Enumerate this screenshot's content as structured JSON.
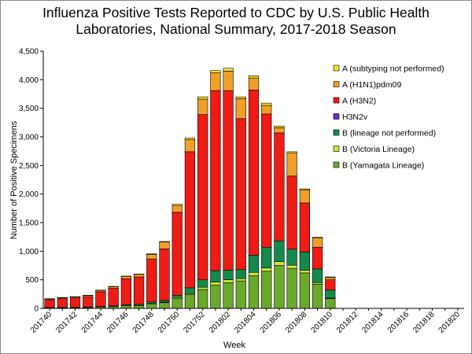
{
  "chart_data": {
    "type": "bar",
    "stacked": true,
    "title_line1": "Influenza Positive Tests Reported to CDC by U.S. Public Health",
    "title_line2": "Laboratories, National Summary, 2017-2018 Season",
    "xlabel": "Week",
    "ylabel": "Number of Positive Specimens",
    "ylim": [
      0,
      4500
    ],
    "yticks": [
      "0",
      "500",
      "1,000",
      "1,500",
      "2,000",
      "2,500",
      "3,000",
      "3,500",
      "4,000",
      "4,500"
    ],
    "ytick_values": [
      0,
      500,
      1000,
      1500,
      2000,
      2500,
      3000,
      3500,
      4000,
      4500
    ],
    "categories": [
      "201740",
      "201741",
      "201742",
      "201743",
      "201744",
      "201745",
      "201746",
      "201747",
      "201748",
      "201749",
      "201750",
      "201751",
      "201752",
      "201801",
      "201802",
      "201803",
      "201804",
      "201805",
      "201806",
      "201807",
      "201808",
      "201809",
      "201810",
      "201811",
      "201812",
      "201813",
      "201814",
      "201815",
      "201816",
      "201817",
      "201818",
      "201819",
      "201820"
    ],
    "xtick_labels": [
      "201740",
      "201742",
      "201744",
      "201746",
      "201748",
      "201750",
      "201752",
      "201802",
      "201804",
      "201806",
      "201808",
      "201810",
      "201812",
      "201814",
      "201816",
      "201818",
      "201820"
    ],
    "series": [
      {
        "name": "B (Yamagata Lineage)",
        "color": "#6aaa2a",
        "values": [
          10,
          10,
          12,
          15,
          25,
          30,
          45,
          50,
          80,
          100,
          170,
          240,
          330,
          410,
          450,
          480,
          570,
          650,
          750,
          700,
          620,
          420,
          170,
          0,
          0,
          0,
          0,
          0,
          0,
          0,
          0,
          0,
          0
        ]
      },
      {
        "name": "B (Victoria Lineage)",
        "color": "#c8e63c",
        "values": [
          0,
          0,
          0,
          0,
          0,
          0,
          0,
          0,
          5,
          10,
          20,
          20,
          40,
          50,
          50,
          40,
          60,
          60,
          70,
          55,
          45,
          30,
          10,
          0,
          0,
          0,
          0,
          0,
          0,
          0,
          0,
          0,
          0
        ]
      },
      {
        "name": "B (lineage not performed)",
        "color": "#138a4c",
        "values": [
          5,
          5,
          5,
          10,
          10,
          15,
          20,
          20,
          30,
          30,
          40,
          100,
          130,
          200,
          170,
          160,
          300,
          360,
          360,
          280,
          320,
          240,
          140,
          0,
          0,
          0,
          0,
          0,
          0,
          0,
          0,
          0,
          0
        ]
      },
      {
        "name": "H3N2v",
        "color": "#6a2cc8",
        "values": [
          0,
          0,
          0,
          0,
          0,
          0,
          0,
          0,
          0,
          0,
          0,
          0,
          0,
          0,
          0,
          0,
          0,
          0,
          0,
          0,
          0,
          0,
          0,
          0,
          0,
          0,
          0,
          0,
          0,
          0,
          0,
          0,
          0
        ]
      },
      {
        "name": "A (H3N2)",
        "color": "#ee1c14",
        "values": [
          135,
          155,
          165,
          180,
          255,
          305,
          455,
          480,
          750,
          900,
          1450,
          2380,
          2890,
          3150,
          3140,
          2640,
          2890,
          2330,
          1890,
          1280,
          860,
          380,
          180,
          0,
          0,
          0,
          0,
          0,
          0,
          0,
          0,
          0,
          0
        ]
      },
      {
        "name": "A (H1N1)pdm09",
        "color": "#f0a028",
        "values": [
          15,
          15,
          18,
          20,
          25,
          30,
          40,
          45,
          80,
          120,
          120,
          210,
          270,
          310,
          340,
          350,
          210,
          150,
          90,
          400,
          230,
          160,
          40,
          0,
          0,
          0,
          0,
          0,
          0,
          0,
          0,
          0,
          0
        ]
      },
      {
        "name": "A (subtyping not performed)",
        "color": "#f5e22a",
        "values": [
          5,
          5,
          5,
          5,
          5,
          5,
          5,
          5,
          10,
          10,
          20,
          30,
          40,
          40,
          50,
          30,
          40,
          40,
          30,
          25,
          15,
          15,
          10,
          0,
          0,
          0,
          0,
          0,
          0,
          0,
          0,
          0,
          0
        ]
      }
    ],
    "legend_order": [
      "A (subtyping not performed)",
      "A (H1N1)pdm09",
      "A (H3N2)",
      "H3N2v",
      "B (lineage not performed)",
      "B (Victoria Lineage)",
      "B (Yamagata Lineage)"
    ],
    "legend_position": "top-right"
  }
}
